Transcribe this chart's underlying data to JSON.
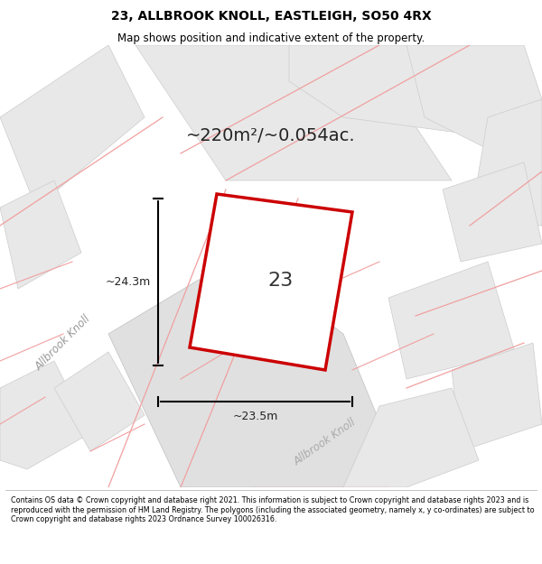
{
  "title_line1": "23, ALLBROOK KNOLL, EASTLEIGH, SO50 4RX",
  "title_line2": "Map shows position and indicative extent of the property.",
  "area_text": "~220m²/~0.054ac.",
  "label_width": "~23.5m",
  "label_height": "~24.3m",
  "property_number": "23",
  "footer_text": "Contains OS data © Crown copyright and database right 2021. This information is subject to Crown copyright and database rights 2023 and is reproduced with the permission of HM Land Registry. The polygons (including the associated geometry, namely x, y co-ordinates) are subject to Crown copyright and database rights 2023 Ordnance Survey 100026316.",
  "bg_color": "#f5f5f5",
  "map_bg": "#ffffff",
  "road_color_light": "#f5c0c0",
  "road_color_dark": "#d0d0d0",
  "plot_color": "#cc0000",
  "street_label": "Allbrook Knoll",
  "street_label2": "Allbrook Knoll"
}
